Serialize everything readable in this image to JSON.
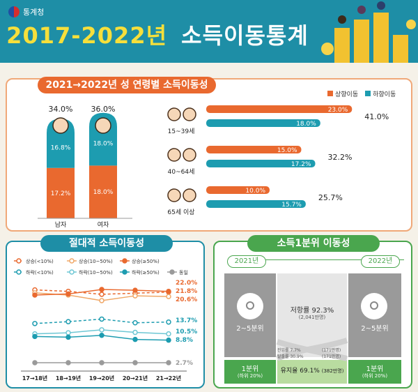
{
  "header": {
    "org": "통계청",
    "title_years": "2017-2022년",
    "title_text": "소득이동통계"
  },
  "section1": {
    "title": "2021→2022년 성 연령별 소득이동성",
    "legend": {
      "up": "상향이동",
      "down": "하향이동"
    },
    "colors": {
      "up": "#e9692f",
      "down": "#1d9cb0"
    },
    "gender": {
      "categories": [
        "남자",
        "여자"
      ],
      "totals": [
        "34.0%",
        "36.0%"
      ],
      "up": [
        17.2,
        18.0
      ],
      "down": [
        16.8,
        18.0
      ],
      "up_labels": [
        "17.2%",
        "18.0%"
      ],
      "down_labels": [
        "16.8%",
        "18.0%"
      ]
    },
    "age": {
      "groups": [
        "15~39세",
        "40~64세",
        "65세 이상"
      ],
      "up": [
        23.0,
        15.0,
        10.0
      ],
      "down": [
        18.0,
        17.2,
        15.7
      ],
      "up_labels": [
        "23.0%",
        "15.0%",
        "10.0%"
      ],
      "down_labels": [
        "18.0%",
        "17.2%",
        "15.7%"
      ],
      "totals": [
        "41.0%",
        "32.2%",
        "25.7%"
      ]
    }
  },
  "section2": {
    "title": "절대적 소득이동성",
    "legend": [
      "상승(<10%)",
      "상승(10~50%)",
      "상승(≥50%)",
      "하락(<10%)",
      "하락(10~50%)",
      "하락(≥50%)",
      "동일"
    ],
    "x_labels": [
      "17→18년",
      "18→19년",
      "19→20년",
      "20→21년",
      "21→22년"
    ],
    "end_labels": [
      "22.0%",
      "21.8%",
      "20.6%",
      "13.7%",
      "10.5%",
      "8.8%",
      "2.7%"
    ]
  },
  "section3": {
    "title": "소득1분위 이동성",
    "year_from": "2021년",
    "year_to": "2022년",
    "box_from": "2~5분위",
    "box_to": "2~5분위",
    "middle": "저항률 92.3%",
    "middle_sub": "(2,041만명)",
    "q1_from": "1분위",
    "q1_from_sub": "(하위 20%)",
    "q1_to": "1분위",
    "q1_to_sub": "(하위 20%)",
    "stay": "유지율 69.1%",
    "stay_sub": "(382만명)",
    "flow_left": "진입률 7.7%",
    "flow_right": "(171만명)",
    "flow_left2": "탈출률 30.9%",
    "flow_right2": "(171만명)"
  },
  "chart_data": [
    {
      "type": "bar",
      "title": "2021→2022년 성 연령별 소득이동성",
      "categories": [
        "남자",
        "여자"
      ],
      "series": [
        {
          "name": "상향이동",
          "values": [
            17.2,
            18.0
          ]
        },
        {
          "name": "하향이동",
          "values": [
            16.8,
            18.0
          ]
        }
      ]
    },
    {
      "type": "bar",
      "categories": [
        "15~39세",
        "40~64세",
        "65세 이상"
      ],
      "series": [
        {
          "name": "상향이동",
          "values": [
            23.0,
            15.0,
            10.0
          ]
        },
        {
          "name": "하향이동",
          "values": [
            18.0,
            17.2,
            15.7
          ]
        }
      ]
    },
    {
      "type": "line",
      "title": "절대적 소득이동성",
      "x": [
        "17→18년",
        "18→19년",
        "19→20년",
        "20→21년",
        "21→22년"
      ],
      "series": [
        {
          "name": "상승(<10%)",
          "values": [
            22.4,
            22.0,
            21.2,
            21.5,
            21.8
          ]
        },
        {
          "name": "상승(10~50%)",
          "values": [
            21.6,
            21.0,
            19.5,
            20.8,
            20.6
          ]
        },
        {
          "name": "상승(≥50%)",
          "values": [
            21.0,
            21.3,
            22.5,
            22.3,
            22.0
          ]
        },
        {
          "name": "하락(<10%)",
          "values": [
            13.3,
            13.8,
            14.5,
            13.5,
            13.7
          ]
        },
        {
          "name": "하락(10~50%)",
          "values": [
            10.5,
            10.8,
            11.6,
            10.9,
            10.5
          ]
        },
        {
          "name": "하락(≥50%)",
          "values": [
            9.8,
            9.6,
            10.1,
            9.0,
            8.8
          ]
        },
        {
          "name": "동일",
          "values": [
            2.5,
            2.5,
            2.6,
            2.6,
            2.7
          ]
        }
      ]
    }
  ]
}
